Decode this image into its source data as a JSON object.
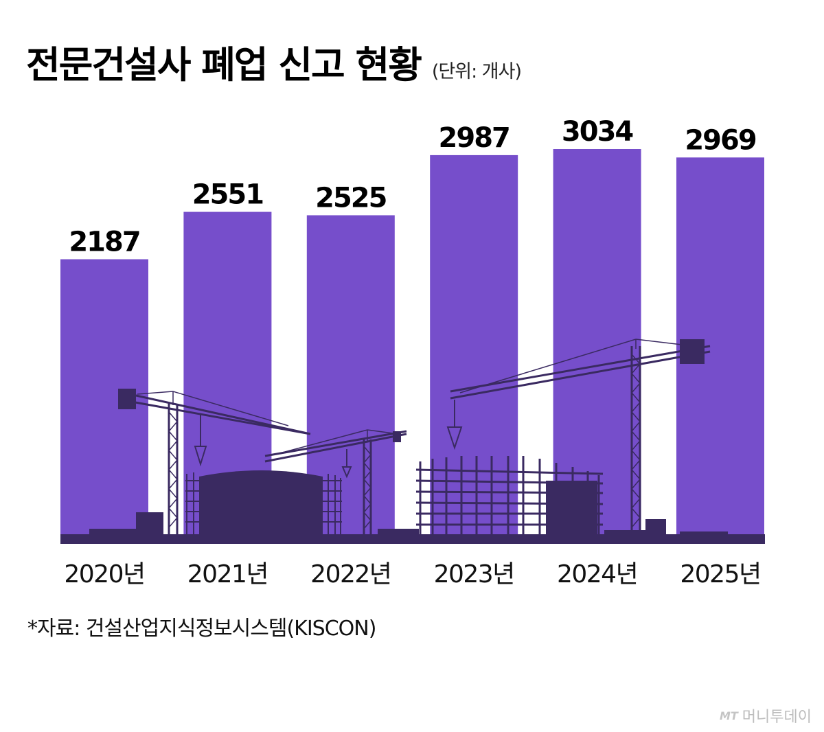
{
  "title": "전문건설사 폐업 신고 현황",
  "unit": "(단위: 개사)",
  "source": "*자료: 건설산업지식정보시스템(KISCON)",
  "brand": {
    "mark": "MT",
    "name": "머니투데이"
  },
  "colors": {
    "bar": "#764ecb",
    "silhouette": "#3a2a61",
    "text": "#111111"
  },
  "chart_data": {
    "type": "bar",
    "categories": [
      "2020년",
      "2021년",
      "2022년",
      "2023년",
      "2024년",
      "2025년"
    ],
    "values": [
      2187,
      2551,
      2525,
      2987,
      3034,
      2969
    ],
    "title": "전문건설사 폐업 신고 현황",
    "unit": "개사",
    "data_labels": true,
    "grid": false
  }
}
